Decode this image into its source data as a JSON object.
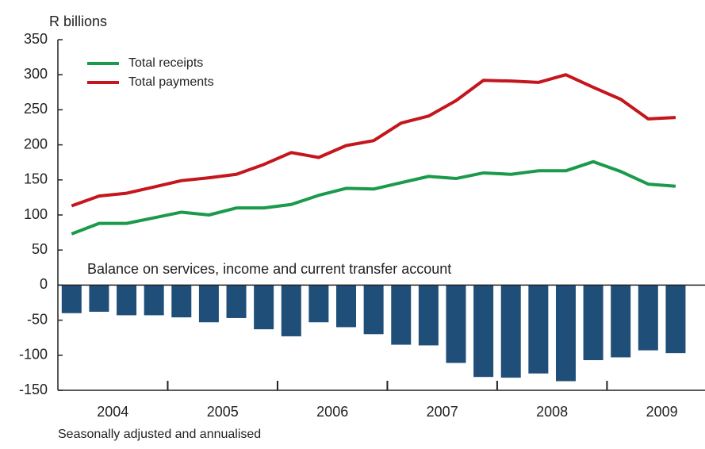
{
  "chart_data": {
    "type": "line-bar",
    "y_axis_label": "R billions",
    "annotation": "Balance on services, income and current transfer account",
    "footnote": "Seasonally adjusted and annualised",
    "categories": [
      null,
      "2004",
      null,
      null,
      null,
      "2005",
      null,
      null,
      null,
      "2006",
      null,
      null,
      null,
      "2007",
      null,
      null,
      null,
      "2008",
      null,
      null,
      null,
      "2009",
      null
    ],
    "series": [
      {
        "name": "Total receipts",
        "color": "#1a9a4a",
        "kind": "line",
        "values": [
          73,
          88,
          88,
          96,
          104,
          100,
          110,
          110,
          115,
          128,
          138,
          137,
          146,
          155,
          152,
          160,
          158,
          163,
          163,
          176,
          162,
          144,
          141
        ]
      },
      {
        "name": "Total payments",
        "color": "#c4161c",
        "kind": "line",
        "values": [
          113,
          127,
          131,
          140,
          149,
          153,
          158,
          172,
          189,
          182,
          199,
          206,
          231,
          241,
          263,
          292,
          291,
          289,
          300,
          282,
          265,
          237,
          239
        ]
      },
      {
        "color": "#1f4e79",
        "kind": "bar",
        "values": [
          -40,
          -38,
          -43,
          -43,
          -46,
          -53,
          -47,
          -63,
          -73,
          -53,
          -60,
          -70,
          -85,
          -86,
          -111,
          -131,
          -132,
          -126,
          -137,
          -107,
          -103,
          -93,
          -97
        ]
      }
    ],
    "ylim": [
      -150,
      350
    ],
    "yticks": [
      350,
      300,
      250,
      200,
      150,
      100,
      50,
      0,
      -50,
      -100,
      -150
    ],
    "grid": false
  }
}
